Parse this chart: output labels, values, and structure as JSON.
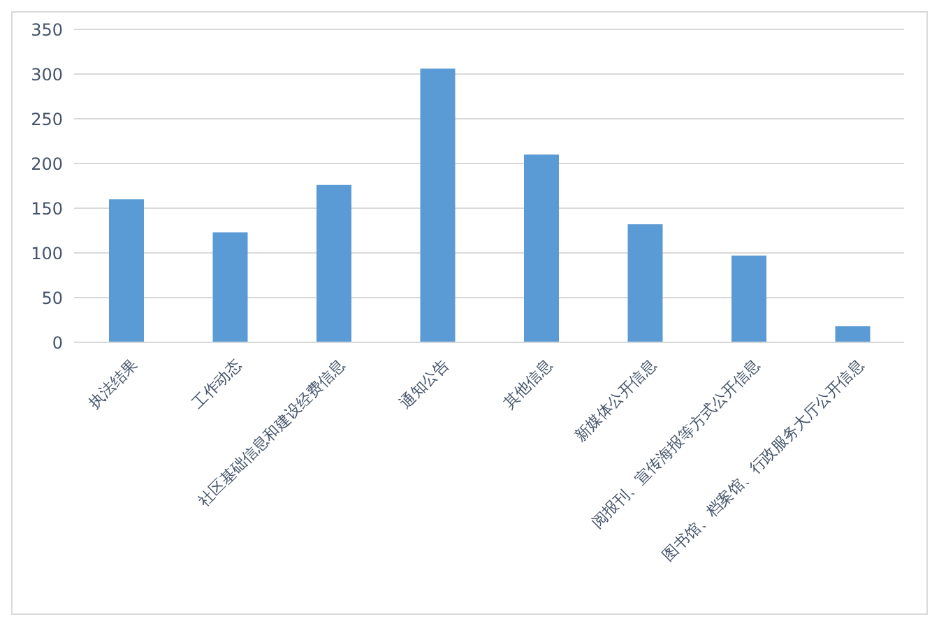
{
  "chart_data": {
    "type": "bar",
    "categories": [
      "执法结果",
      "工作动态",
      "社区基础信息和建设经费信息",
      "通知公告",
      "其他信息",
      "新媒体公开信息",
      "阅报刊、宣传海报等方式公开信息",
      "图书馆、档案馆、行政服务大厅公开信息"
    ],
    "values": [
      160,
      123,
      176,
      306,
      210,
      132,
      97,
      18
    ],
    "color": "#5b9bd5",
    "ylim": [
      0,
      350
    ],
    "yticks": [
      0,
      50,
      100,
      150,
      200,
      250,
      300,
      350
    ],
    "grid": "y",
    "legend": false
  }
}
